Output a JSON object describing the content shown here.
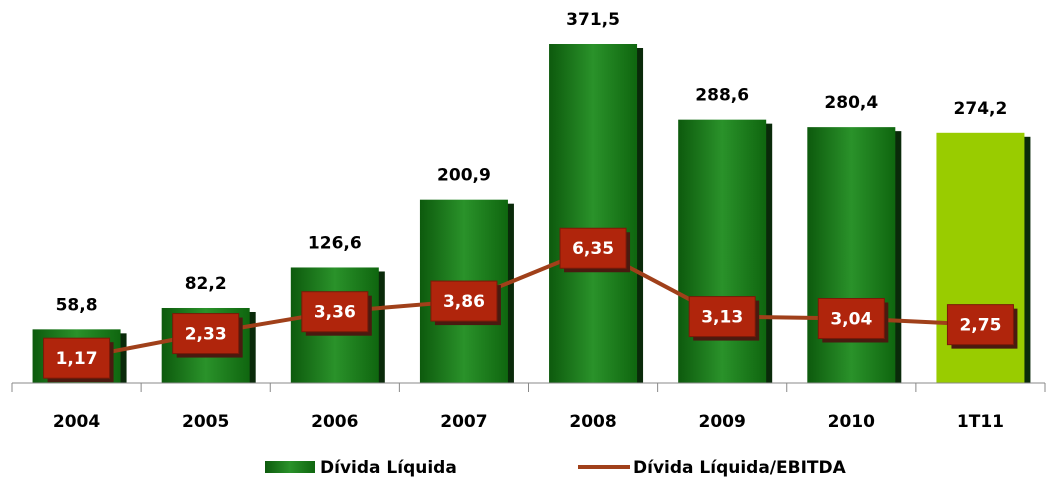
{
  "chart_data": {
    "type": "bar_line",
    "categories": [
      "2004",
      "2005",
      "2006",
      "2007",
      "2008",
      "2009",
      "2010",
      "1T11"
    ],
    "series": [
      {
        "name": "Dívida Líquida",
        "type": "bar",
        "color": "#1e7d1e",
        "colors": [
          "#1e7d1e",
          "#1e7d1e",
          "#1e7d1e",
          "#1e7d1e",
          "#1e7d1e",
          "#1e7d1e",
          "#1e7d1e",
          "#99cc00"
        ],
        "values": [
          58.8,
          82.2,
          126.6,
          200.9,
          371.5,
          288.6,
          280.4,
          274.2
        ],
        "value_labels": [
          "58,8",
          "82,2",
          "126,6",
          "200,9",
          "371,5",
          "288,6",
          "280,4",
          "274,2"
        ]
      },
      {
        "name": "Dívida Líquida/EBITDA",
        "type": "line",
        "axis": "y2",
        "color": "#a0401a",
        "marker_color": "#b0250c",
        "values": [
          1.17,
          2.33,
          3.36,
          3.86,
          6.35,
          3.13,
          3.04,
          2.75
        ],
        "value_labels": [
          "1,17",
          "2,33",
          "3,36",
          "3,86",
          "6,35",
          "3,13",
          "3,04",
          "2,75"
        ]
      }
    ],
    "ylim": [
      0,
      400
    ],
    "y2lim": [
      0,
      17.2
    ]
  }
}
